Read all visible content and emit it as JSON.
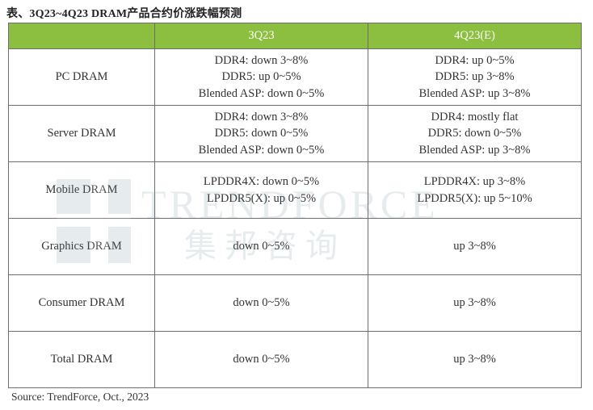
{
  "title": "表、3Q23~4Q23 DRAM产品合约价涨跌幅预测",
  "columns": [
    "",
    "3Q23",
    "4Q23(E)"
  ],
  "rows": [
    {
      "category": "PC DRAM",
      "q3": [
        "DDR4: down 3~8%",
        "DDR5: up 0~5%",
        "Blended ASP: down 0~5%"
      ],
      "q4": [
        "DDR4: up 0~5%",
        "DDR5:  up 3~8%",
        "Blended ASP: up 3~8%"
      ]
    },
    {
      "category": "Server DRAM",
      "q3": [
        "DDR4: down 3~8%",
        "DDR5: down 0~5%",
        "Blended ASP: down 0~5%"
      ],
      "q4": [
        "DDR4: mostly flat",
        "DDR5: down 0~5%",
        "Blended ASP: up 3~8%"
      ]
    },
    {
      "category": "Mobile DRAM",
      "q3": [
        "LPDDR4X: down 0~5%",
        "LPDDR5(X): up 0~5%"
      ],
      "q4": [
        "LPDDR4X: up 3~8%",
        "LPDDR5(X): up 5~10%"
      ]
    },
    {
      "category": "Graphics DRAM",
      "q3": [
        "down 0~5%"
      ],
      "q4": [
        "up  3~8%"
      ]
    },
    {
      "category": "Consumer DRAM",
      "q3": [
        "down 0~5%"
      ],
      "q4": [
        "up  3~8%"
      ]
    },
    {
      "category": "Total DRAM",
      "q3": [
        "down 0~5%"
      ],
      "q4": [
        "up  3~8%"
      ]
    }
  ],
  "watermark": {
    "brand": "TRENDFORCE",
    "brand_cn": "集邦咨询"
  },
  "source": "Source: TrendForce, Oct.,  2023",
  "colors": {
    "header_bg": "#8cbf3f",
    "header_text": "#ffffff",
    "border": "#6e6e6e"
  }
}
